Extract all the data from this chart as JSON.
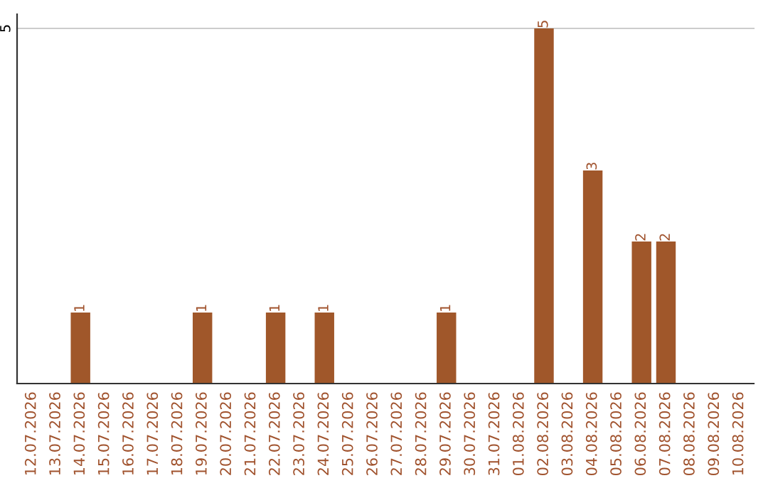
{
  "chart_data": {
    "type": "bar",
    "categories": [
      "12.07.2026",
      "13.07.2026",
      "14.07.2026",
      "15.07.2026",
      "16.07.2026",
      "17.07.2026",
      "18.07.2026",
      "19.07.2026",
      "20.07.2026",
      "21.07.2026",
      "22.07.2026",
      "23.07.2026",
      "24.07.2026",
      "25.07.2026",
      "26.07.2026",
      "27.07.2026",
      "28.07.2026",
      "29.07.2026",
      "30.07.2026",
      "31.07.2026",
      "01.08.2026",
      "02.08.2026",
      "03.08.2026",
      "04.08.2026",
      "05.08.2026",
      "06.08.2026",
      "07.08.2026",
      "08.08.2026",
      "09.08.2026",
      "10.08.2026"
    ],
    "values": [
      0,
      0,
      1,
      0,
      0,
      0,
      0,
      1,
      0,
      0,
      1,
      0,
      1,
      0,
      0,
      0,
      0,
      1,
      0,
      0,
      0,
      5,
      0,
      3,
      0,
      2,
      2,
      0,
      0,
      0
    ],
    "value_labels": [
      null,
      null,
      "1",
      null,
      null,
      null,
      null,
      "1",
      null,
      null,
      "1",
      null,
      "1",
      null,
      null,
      null,
      null,
      "1",
      null,
      null,
      null,
      "5",
      null,
      "3",
      null,
      "2",
      "2",
      null,
      null,
      null
    ],
    "color": "#a0572a",
    "ylim": [
      0,
      5.2
    ],
    "yticks": [
      5
    ],
    "grid": "y"
  }
}
